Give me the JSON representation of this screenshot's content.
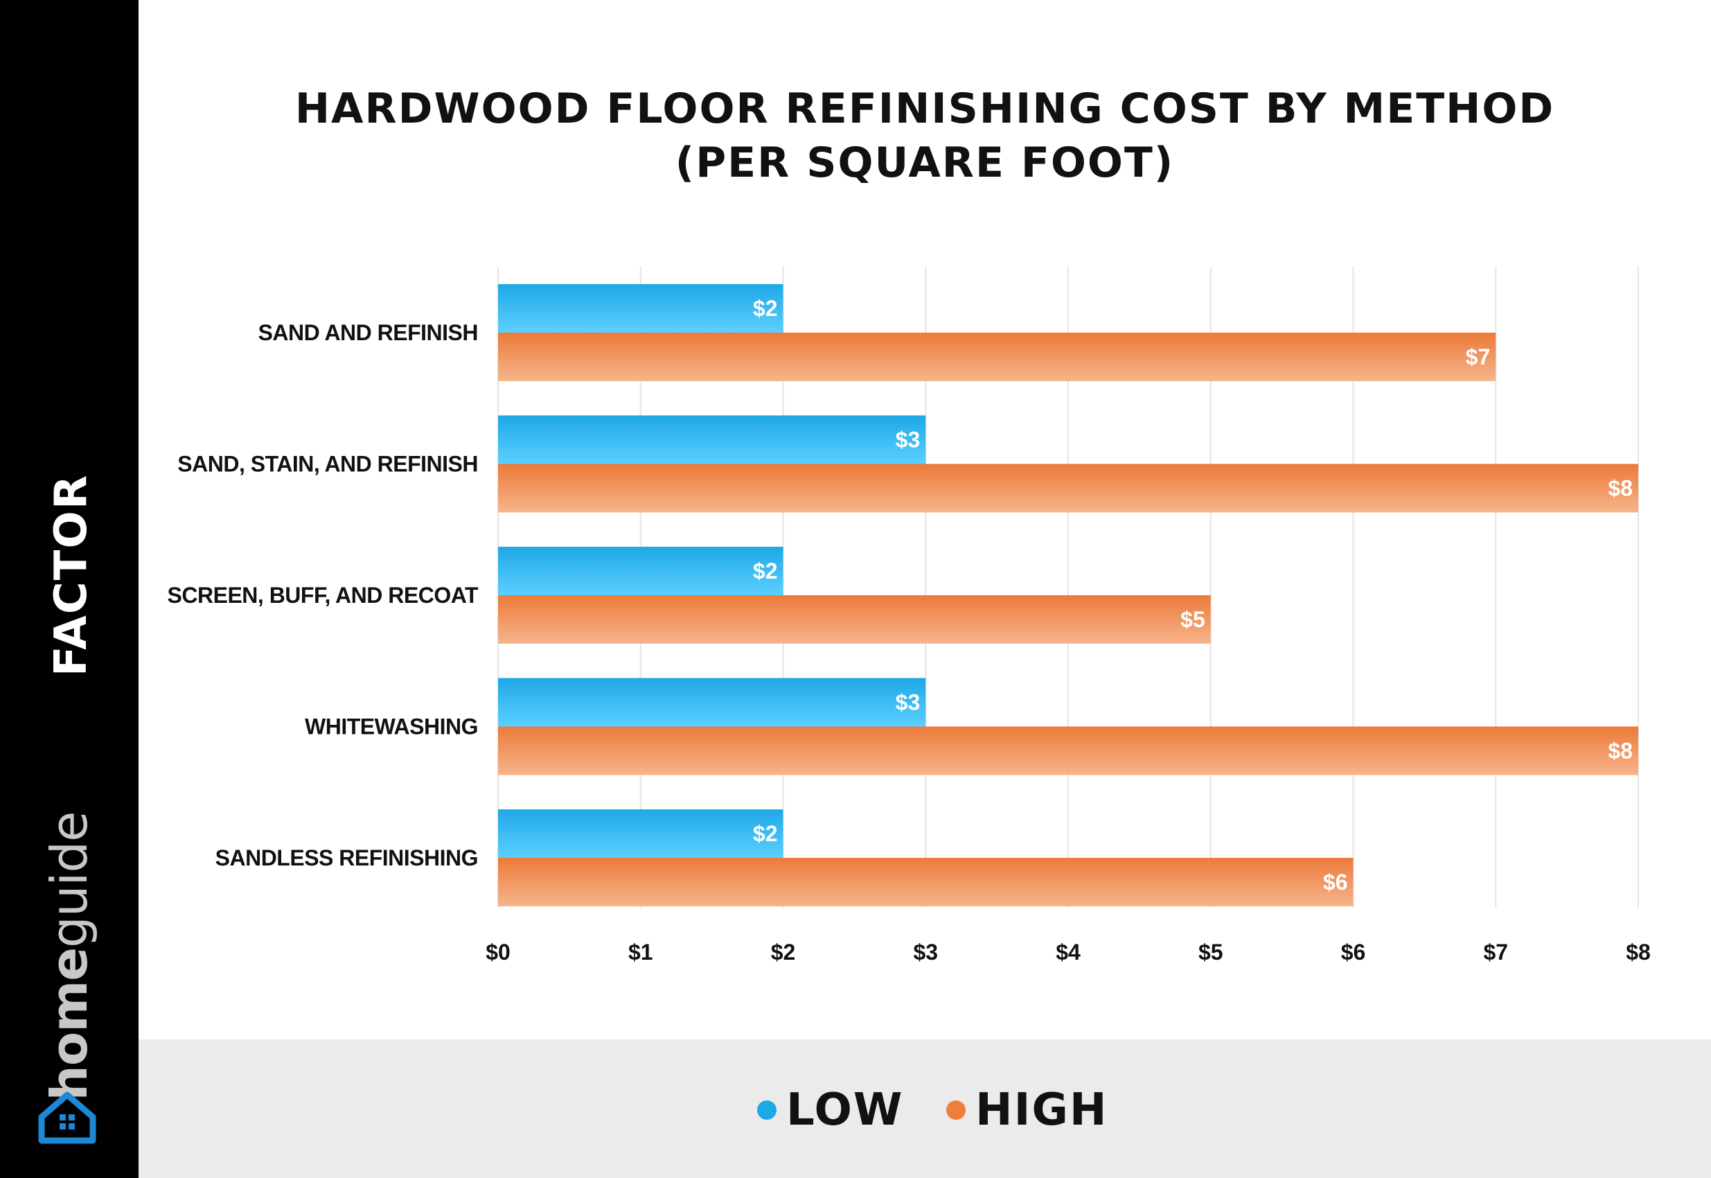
{
  "sidebar": {
    "axis_title": "FACTOR",
    "brand_home": "home",
    "brand_guide": "guide",
    "logo_icon": "house-logo-icon"
  },
  "title_lines": [
    "HARDWOOD FLOOR REFINISHING COST BY METHOD",
    "(PER SQUARE FOOT)"
  ],
  "legend": [
    {
      "label": "LOW",
      "color": "#1ea8e6"
    },
    {
      "label": "HIGH",
      "color": "#ef7e3b"
    }
  ],
  "chart_data": {
    "type": "bar",
    "orientation": "horizontal",
    "title": "HARDWOOD FLOOR REFINISHING COST BY METHOD (PER SQUARE FOOT)",
    "ylabel": "FACTOR",
    "xlabel": "",
    "categories": [
      "SAND AND REFINISH",
      "SAND, STAIN, AND REFINISH",
      "SCREEN, BUFF, AND RECOAT",
      "WHITEWASHING",
      "SANDLESS REFINISHING"
    ],
    "series": [
      {
        "name": "LOW",
        "values": [
          2,
          3,
          2,
          3,
          2
        ],
        "labels": [
          "$2",
          "$3",
          "$2",
          "$3",
          "$2"
        ],
        "color_top": "#1ea8e6",
        "color_bottom": "#5ccfff"
      },
      {
        "name": "HIGH",
        "values": [
          7,
          8,
          5,
          8,
          6
        ],
        "labels": [
          "$7",
          "$8",
          "$5",
          "$8",
          "$6"
        ],
        "color_top": "#ec7a3a",
        "color_bottom": "#f6b58b"
      }
    ],
    "xlim": [
      0,
      8
    ],
    "xticks": [
      0,
      1,
      2,
      3,
      4,
      5,
      6,
      7,
      8
    ],
    "xtick_labels": [
      "$0",
      "$1",
      "$2",
      "$3",
      "$4",
      "$5",
      "$6",
      "$7",
      "$8"
    ],
    "grid": true,
    "legend_position": "bottom"
  }
}
